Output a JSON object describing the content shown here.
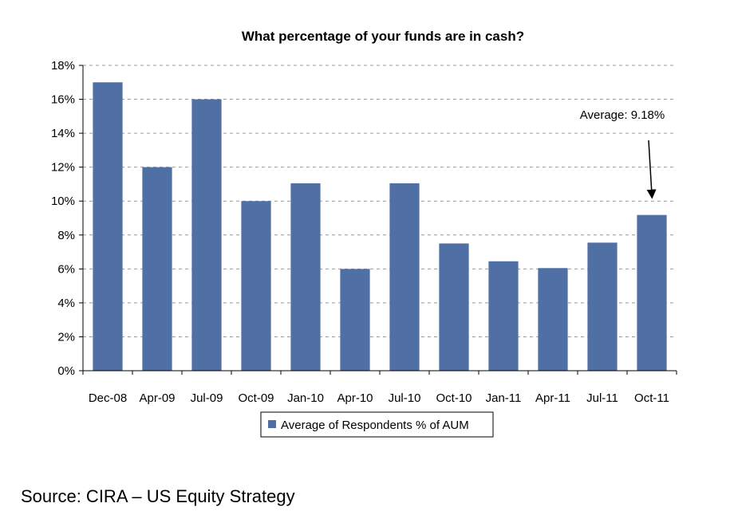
{
  "chart_data": {
    "type": "bar",
    "title": "What percentage of your funds are in cash?",
    "categories": [
      "Dec-08",
      "Apr-09",
      "Jul-09",
      "Oct-09",
      "Jan-10",
      "Apr-10",
      "Jul-10",
      "Oct-10",
      "Jan-11",
      "Apr-11",
      "Jul-11",
      "Oct-11"
    ],
    "series": [
      {
        "name": "Average of Respondents % of AUM",
        "values": [
          17.0,
          12.0,
          16.0,
          10.0,
          11.05,
          6.0,
          11.05,
          7.5,
          6.45,
          6.05,
          7.55,
          9.18
        ],
        "color": "#4F6FA5"
      }
    ],
    "ylim": [
      0,
      18
    ],
    "yticks": [
      0,
      2,
      4,
      6,
      8,
      10,
      12,
      14,
      16,
      18
    ],
    "ytick_labels": [
      "0%",
      "2%",
      "4%",
      "6%",
      "8%",
      "10%",
      "12%",
      "14%",
      "16%",
      "18%"
    ],
    "grid": true,
    "legend_position": "bottom",
    "annotation": {
      "text": "Average: 9.18%",
      "target_category": "Oct-11"
    }
  },
  "source": "Source: CIRA – US Equity Strategy"
}
